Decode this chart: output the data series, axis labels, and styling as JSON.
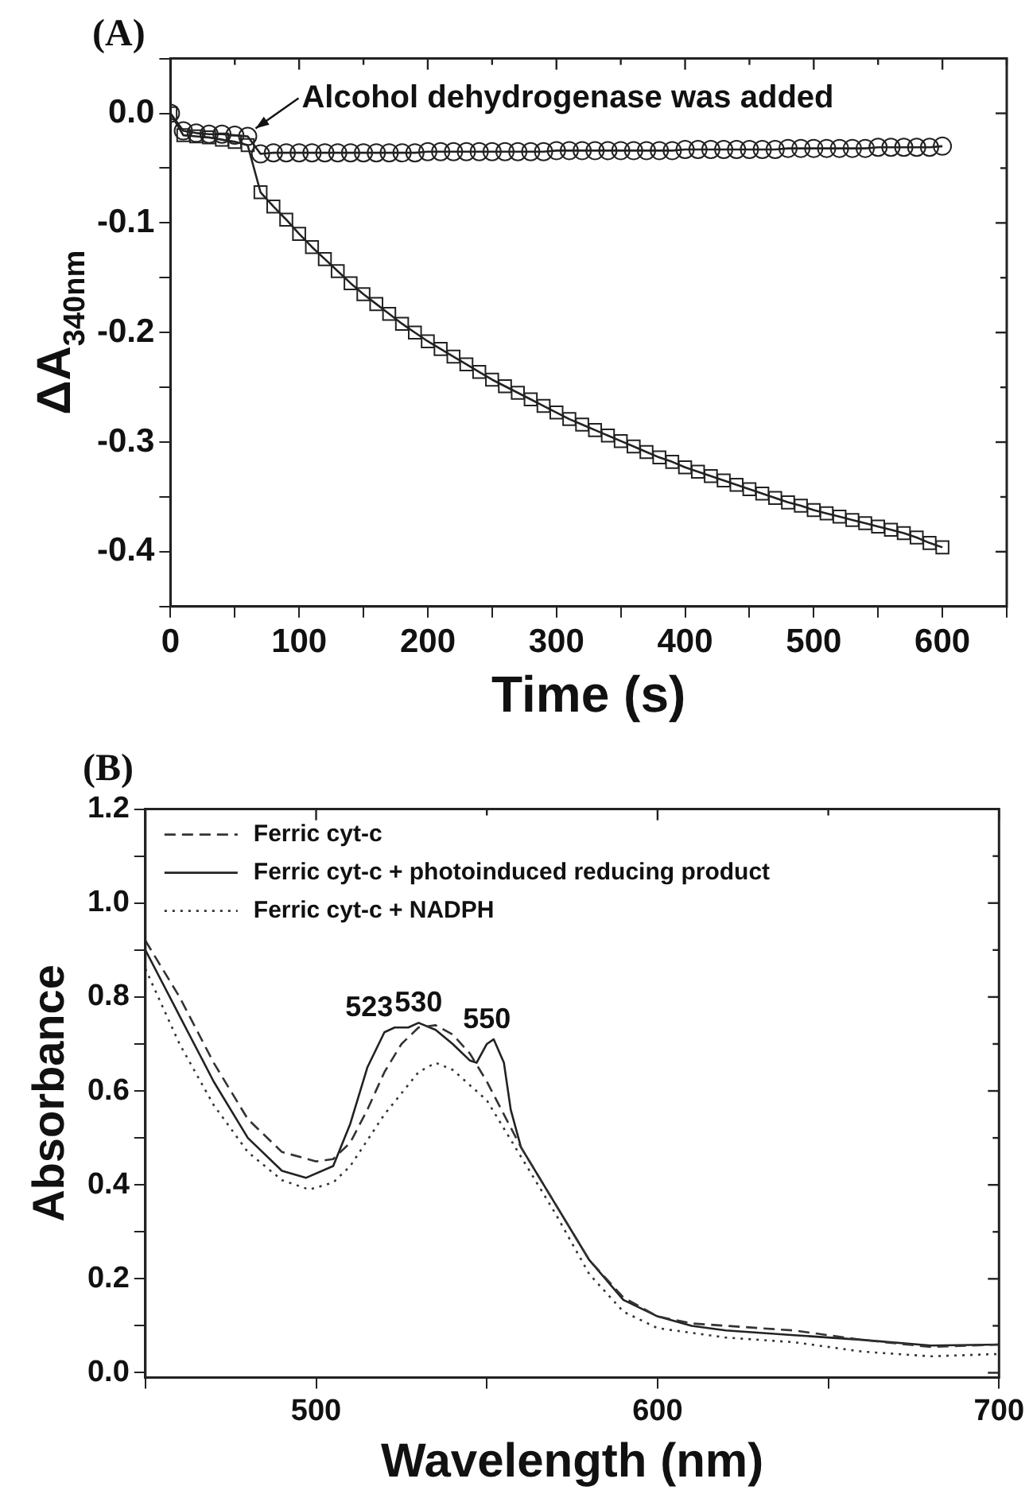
{
  "chart_data": [
    {
      "type": "line",
      "title": "(A)",
      "xlabel": "Time (s)",
      "ylabel": "ΔA$_{340nm}$",
      "x": [
        0,
        10,
        20,
        30,
        40,
        50,
        60,
        70,
        80,
        90,
        100,
        110,
        120,
        130,
        140,
        150,
        160,
        170,
        180,
        190,
        200,
        210,
        220,
        230,
        240,
        250,
        260,
        270,
        280,
        290,
        300,
        310,
        320,
        330,
        340,
        350,
        360,
        370,
        380,
        390,
        400,
        410,
        420,
        430,
        440,
        450,
        460,
        470,
        480,
        490,
        500,
        510,
        520,
        530,
        540,
        550,
        560,
        570,
        580,
        590,
        600
      ],
      "series": [
        {
          "color": "#222222",
          "marker": "circle",
          "values": [
            0,
            -0.016,
            -0.018,
            -0.019,
            -0.019,
            -0.02,
            -0.021,
            -0.037,
            -0.036,
            -0.036,
            -0.036,
            -0.036,
            -0.036,
            -0.036,
            -0.036,
            -0.036,
            -0.036,
            -0.036,
            -0.036,
            -0.036,
            -0.035,
            -0.035,
            -0.035,
            -0.035,
            -0.035,
            -0.035,
            -0.035,
            -0.035,
            -0.035,
            -0.035,
            -0.034,
            -0.034,
            -0.034,
            -0.034,
            -0.034,
            -0.034,
            -0.034,
            -0.034,
            -0.034,
            -0.034,
            -0.033,
            -0.033,
            -0.033,
            -0.033,
            -0.033,
            -0.033,
            -0.033,
            -0.033,
            -0.032,
            -0.032,
            -0.032,
            -0.032,
            -0.032,
            -0.032,
            -0.032,
            -0.031,
            -0.031,
            -0.031,
            -0.031,
            -0.031,
            -0.03
          ]
        },
        {
          "color": "#222222",
          "marker": "square",
          "values": [
            0,
            -0.02,
            -0.021,
            -0.022,
            -0.024,
            -0.026,
            -0.029,
            -0.072,
            -0.085,
            -0.097,
            -0.11,
            -0.122,
            -0.133,
            -0.144,
            -0.155,
            -0.165,
            -0.174,
            -0.183,
            -0.192,
            -0.2,
            -0.208,
            -0.215,
            -0.222,
            -0.229,
            -0.236,
            -0.243,
            -0.249,
            -0.255,
            -0.261,
            -0.267,
            -0.273,
            -0.279,
            -0.284,
            -0.289,
            -0.294,
            -0.299,
            -0.304,
            -0.309,
            -0.314,
            -0.318,
            -0.323,
            -0.327,
            -0.331,
            -0.335,
            -0.339,
            -0.343,
            -0.347,
            -0.351,
            -0.355,
            -0.358,
            -0.362,
            -0.365,
            -0.368,
            -0.371,
            -0.374,
            -0.377,
            -0.38,
            -0.383,
            -0.387,
            -0.392,
            -0.396
          ]
        }
      ],
      "xlim": [
        0,
        650
      ],
      "xticks": [
        0,
        {
          "value": 50,
          "label": null
        },
        100,
        {
          "value": 150,
          "label": null
        },
        200,
        {
          "value": 250,
          "label": null
        },
        300,
        {
          "value": 350,
          "label": null
        },
        400,
        {
          "value": 450,
          "label": null
        },
        500,
        {
          "value": 550,
          "label": null
        },
        600,
        {
          "value": 650,
          "label": null
        }
      ],
      "ylim": [
        -0.45,
        0.05
      ],
      "yticks": [
        {
          "value": -0.45,
          "label": null
        },
        -0.4,
        {
          "value": -0.35,
          "label": null
        },
        -0.3,
        {
          "value": -0.25,
          "label": null
        },
        -0.2,
        {
          "value": -0.15,
          "label": null
        },
        -0.1,
        {
          "value": -0.05,
          "label": null
        },
        {
          "value": 0,
          "label": "0.0"
        },
        {
          "value": 0.05,
          "label": null
        }
      ],
      "annotations": [
        {
          "text": "Alcohol dehydrogenase was added",
          "x": 60,
          "y": -0.021
        }
      ],
      "legend": false,
      "grid": false,
      "line_style": "solid"
    },
    {
      "type": "line",
      "title": "(B)",
      "xlabel": "Wavelength (nm)",
      "ylabel": "Absorbance",
      "series": [
        {
          "name": "Ferric cyt-c",
          "color": "#333333",
          "line_style": "dashed",
          "x": [
            450,
            460,
            470,
            480,
            490,
            500,
            505,
            510,
            515,
            520,
            525,
            530,
            535,
            540,
            545,
            550,
            555,
            560,
            570,
            580,
            590,
            600,
            610,
            620,
            640,
            660,
            680,
            700
          ],
          "values": [
            0.92,
            0.8,
            0.66,
            0.54,
            0.47,
            0.45,
            0.455,
            0.49,
            0.56,
            0.64,
            0.7,
            0.735,
            0.74,
            0.72,
            0.68,
            0.62,
            0.55,
            0.48,
            0.36,
            0.24,
            0.16,
            0.12,
            0.105,
            0.1,
            0.09,
            0.07,
            0.055,
            0.06
          ]
        },
        {
          "name": "Ferric cyt-c + photoinduced reducing product",
          "color": "#222222",
          "line_style": "solid",
          "x": [
            450,
            460,
            470,
            480,
            490,
            497,
            505,
            510,
            515,
            520,
            523,
            527,
            530,
            535,
            540,
            545,
            547,
            550,
            552,
            555,
            557,
            560,
            570,
            580,
            590,
            600,
            610,
            620,
            640,
            660,
            680,
            700
          ],
          "values": [
            0.9,
            0.76,
            0.62,
            0.5,
            0.43,
            0.415,
            0.44,
            0.53,
            0.65,
            0.725,
            0.735,
            0.735,
            0.745,
            0.73,
            0.7,
            0.665,
            0.66,
            0.7,
            0.71,
            0.66,
            0.56,
            0.48,
            0.36,
            0.24,
            0.155,
            0.12,
            0.1,
            0.09,
            0.08,
            0.07,
            0.058,
            0.06
          ]
        },
        {
          "name": "Ferric cyt-c + NADPH",
          "color": "#333333",
          "line_style": "dotted",
          "x": [
            450,
            460,
            470,
            480,
            490,
            498,
            505,
            510,
            520,
            530,
            535,
            540,
            550,
            560,
            570,
            580,
            590,
            600,
            620,
            640,
            660,
            680,
            700
          ],
          "values": [
            0.86,
            0.7,
            0.57,
            0.47,
            0.41,
            0.39,
            0.405,
            0.44,
            0.55,
            0.64,
            0.66,
            0.645,
            0.58,
            0.46,
            0.34,
            0.21,
            0.13,
            0.095,
            0.075,
            0.065,
            0.045,
            0.035,
            0.04
          ]
        }
      ],
      "xlim": [
        450,
        700
      ],
      "xticks": [
        {
          "value": 450,
          "label": null
        },
        500,
        {
          "value": 550,
          "label": null
        },
        600,
        {
          "value": 650,
          "label": null
        },
        700
      ],
      "ylim": [
        -0.01,
        1.2
      ],
      "yticks": [
        {
          "value": 0,
          "label": "0.0"
        },
        {
          "value": 0.1,
          "label": null
        },
        0.2,
        {
          "value": 0.3,
          "label": null
        },
        0.4,
        {
          "value": 0.5,
          "label": null
        },
        0.6,
        {
          "value": 0.7,
          "label": null
        },
        0.8,
        {
          "value": 0.9,
          "label": null
        },
        {
          "value": 1,
          "label": "1.0"
        },
        {
          "value": 1.1,
          "label": null
        },
        1.2
      ],
      "annotations": [
        {
          "text": "523",
          "x": 523,
          "y": 0.735
        },
        {
          "text": "530",
          "x": 530,
          "y": 0.745
        },
        {
          "text": "550",
          "x": 550,
          "y": 0.71
        }
      ],
      "legend": "top left",
      "grid": false,
      "marker": "none"
    }
  ]
}
